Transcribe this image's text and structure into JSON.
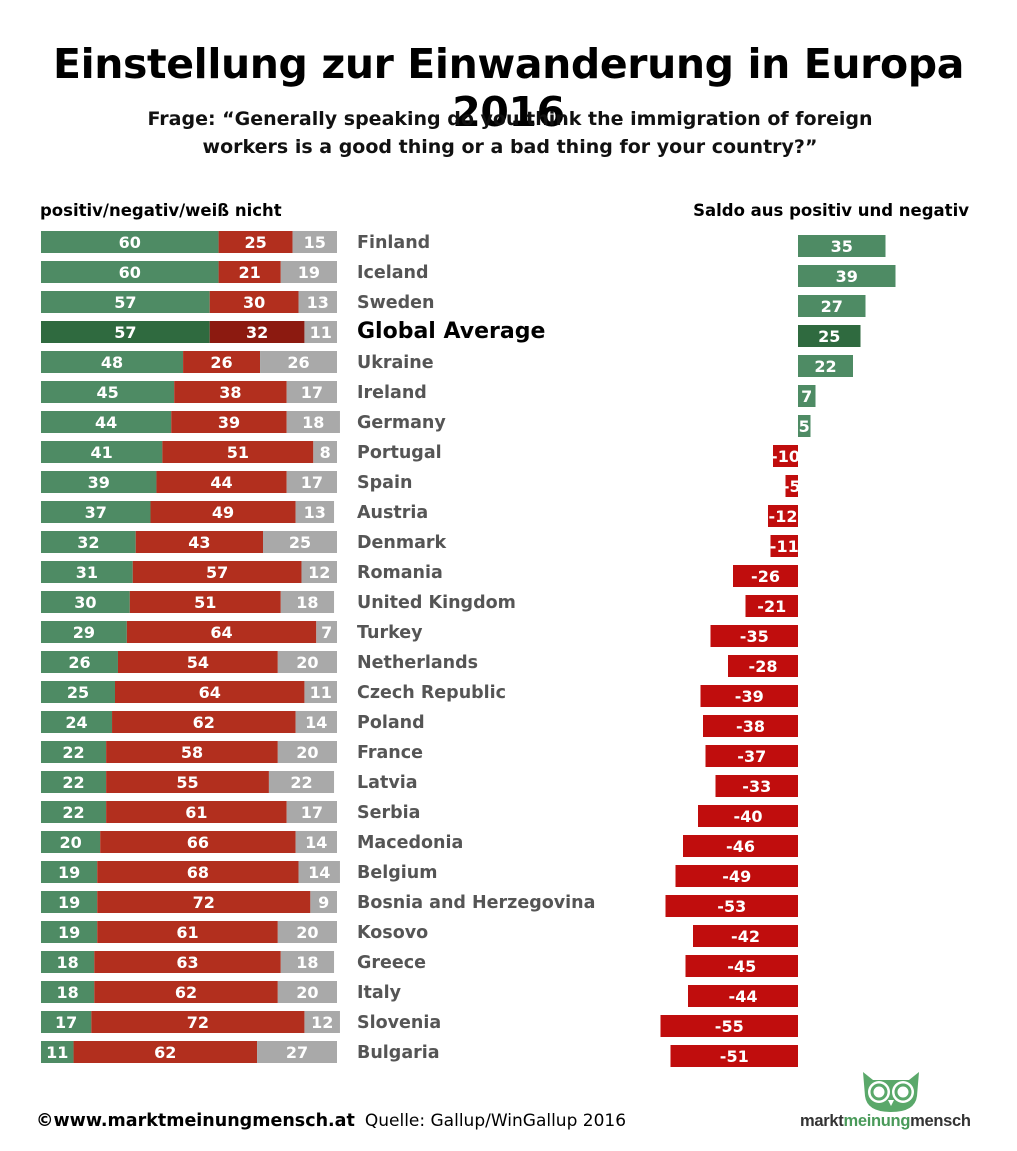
{
  "title": "Einstellung zur Einwanderung in Europa 2016",
  "subtitle_line1": "Frage: “Generally speaking do you think the immigration of foreign",
  "subtitle_line2": "workers is a good thing or a bad thing for your country?”",
  "left_header": "positiv/negativ/weiß nicht",
  "right_header": "Saldo aus positiv und negativ",
  "footer": {
    "copyright": "©www.marktmeinungmensch.at",
    "source": "Quelle: Gallup/WinGallup 2016"
  },
  "logo": {
    "part1": "markt",
    "part2": "meinung",
    "part3": "mensch"
  },
  "colors": {
    "positive": "#4e8b64",
    "negative": "#b22f1e",
    "dontknow": "#a9a9a9",
    "global_positive": "#2f6a3f",
    "global_negative": "#8c1a10",
    "balance_negative": "#c00d0d"
  },
  "chart_data": [
    {
      "type": "bar",
      "stacked": true,
      "orientation": "horizontal",
      "series_names": [
        "positiv",
        "negativ",
        "weiß nicht"
      ],
      "categories": [
        "Finland",
        "Iceland",
        "Sweden",
        "Global Average",
        "Ukraine",
        "Ireland",
        "Germany",
        "Portugal",
        "Spain",
        "Austria",
        "Denmark",
        "Romania",
        "United Kingdom",
        "Turkey",
        "Netherlands",
        "Czech Republic",
        "Poland",
        "France",
        "Latvia",
        "Serbia",
        "Macedonia",
        "Belgium",
        "Bosnia and Herzegovina",
        "Kosovo",
        "Greece",
        "Italy",
        "Slovenia",
        "Bulgaria"
      ],
      "highlight": "Global Average",
      "series": [
        {
          "name": "positiv",
          "values": [
            60,
            60,
            57,
            57,
            48,
            45,
            44,
            41,
            39,
            37,
            32,
            31,
            30,
            29,
            26,
            25,
            24,
            22,
            22,
            22,
            20,
            19,
            19,
            19,
            18,
            18,
            17,
            11
          ]
        },
        {
          "name": "negativ",
          "values": [
            25,
            21,
            30,
            32,
            26,
            38,
            39,
            51,
            44,
            49,
            43,
            57,
            51,
            64,
            54,
            64,
            62,
            58,
            55,
            61,
            66,
            68,
            72,
            61,
            63,
            62,
            72,
            62
          ]
        },
        {
          "name": "weiß nicht",
          "values": [
            15,
            19,
            13,
            11,
            26,
            17,
            18,
            8,
            17,
            13,
            25,
            12,
            18,
            7,
            20,
            11,
            14,
            20,
            22,
            17,
            14,
            14,
            9,
            20,
            18,
            20,
            12,
            27
          ]
        }
      ]
    },
    {
      "type": "bar",
      "orientation": "horizontal",
      "categories": [
        "Finland",
        "Iceland",
        "Sweden",
        "Global Average",
        "Ukraine",
        "Ireland",
        "Germany",
        "Portugal",
        "Spain",
        "Austria",
        "Denmark",
        "Romania",
        "United Kingdom",
        "Turkey",
        "Netherlands",
        "Czech Republic",
        "Poland",
        "France",
        "Latvia",
        "Serbia",
        "Macedonia",
        "Belgium",
        "Bosnia and Herzegovina",
        "Kosovo",
        "Greece",
        "Italy",
        "Slovenia",
        "Bulgaria"
      ],
      "values": [
        35,
        39,
        27,
        25,
        22,
        7,
        5,
        -10,
        -5,
        -12,
        -11,
        -26,
        -21,
        -35,
        -28,
        -39,
        -38,
        -37,
        -33,
        -40,
        -46,
        -49,
        -53,
        -42,
        -45,
        -44,
        -55,
        -51
      ]
    }
  ]
}
